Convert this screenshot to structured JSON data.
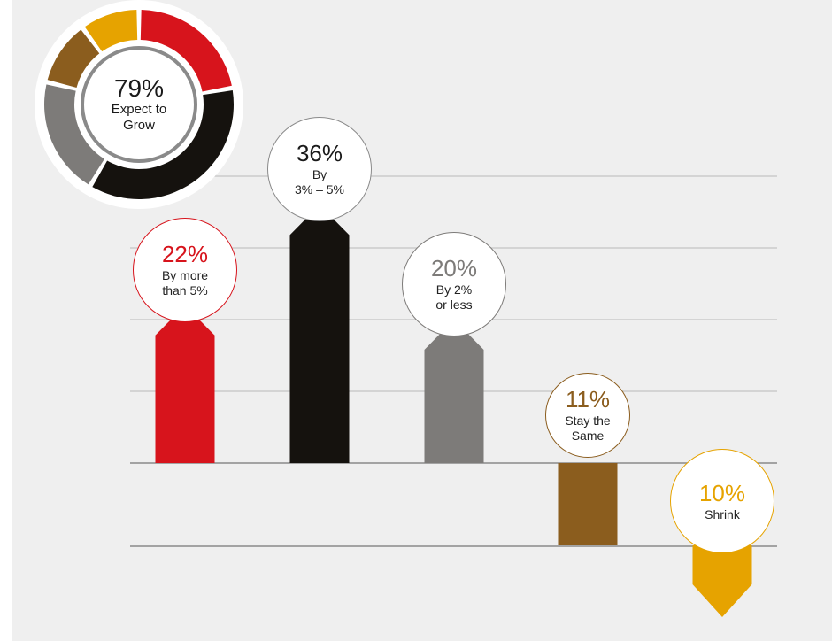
{
  "chart_data": {
    "type": "bar",
    "title": "",
    "xlabel": "",
    "ylabel": "",
    "grid": true,
    "categories": [
      "By more than 5%",
      "By 3% – 5%",
      "By 2% or less",
      "Stay the Same",
      "Shrink"
    ],
    "values": [
      22,
      36,
      20,
      -11,
      -10
    ],
    "ylim": [
      -12,
      40
    ],
    "bars": [
      {
        "value_label": "22%",
        "caption": "By more\nthan 5%",
        "color": "#d7141c",
        "text_color": "#d7141c",
        "direction": "up"
      },
      {
        "value_label": "36%",
        "caption": "By\n3% – 5%",
        "color": "#15120e",
        "text_color": "#1a1a1a",
        "direction": "up"
      },
      {
        "value_label": "20%",
        "caption": "By 2%\nor less",
        "color": "#7d7b79",
        "text_color": "#7d7b79",
        "direction": "up"
      },
      {
        "value_label": "11%",
        "caption": "Stay the\nSame",
        "color": "#8b5d1e",
        "text_color": "#8b5d1e",
        "direction": "flat"
      },
      {
        "value_label": "10%",
        "caption": "Shrink",
        "color": "#e6a300",
        "text_color": "#e6a300",
        "direction": "down"
      }
    ],
    "summary_donut": {
      "value_label": "79%",
      "caption": "Expect to\nGrow",
      "segments": [
        {
          "value": 22,
          "color": "#d7141c"
        },
        {
          "value": 36,
          "color": "#15120e"
        },
        {
          "value": 20,
          "color": "#7d7b79"
        },
        {
          "value": 11,
          "color": "#8b5d1e"
        },
        {
          "value": 10,
          "color": "#e6a300"
        }
      ]
    }
  }
}
